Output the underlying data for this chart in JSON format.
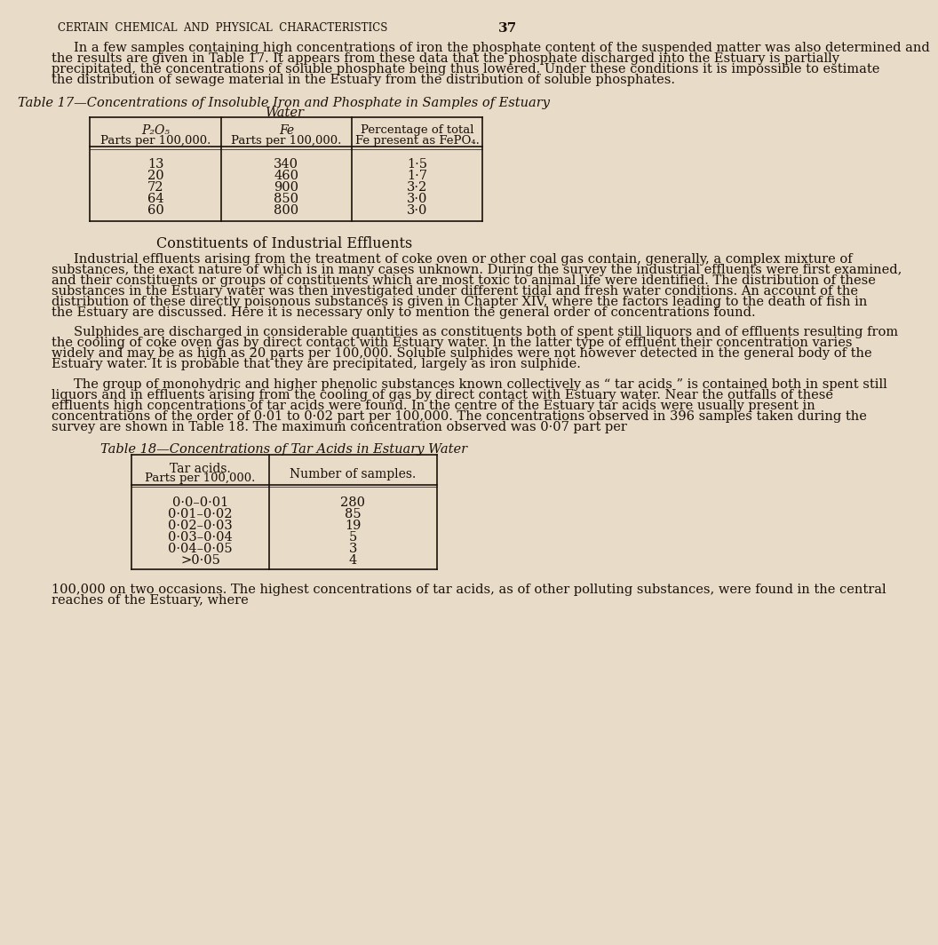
{
  "bg_color": "#e8dcc8",
  "text_color": "#1a1008",
  "page_header": "CERTAIN  CHEMICAL  AND  PHYSICAL  CHARACTERISTICS",
  "page_number": "37",
  "intro_paragraph": "In a few samples containing high concentrations of iron the phosphate content of the suspended matter was also determined and the results are given in Table 17. It appears from these data that the phosphate discharged into the Estuary is partially precipitated, the concentrations of soluble phosphate being thus lowered. Under these conditions it is impossible to estimate the distribution of sewage material in the Estuary from the distribution of soluble phosphates.",
  "table17_title_line1": "Table 17—Concentrations of Insoluble Iron and Phosphate in Samples of Estuary",
  "table17_title_line2": "Water",
  "table17_col1_header_line1": "P₂O₅",
  "table17_col1_header_line2": "Parts per 100,000.",
  "table17_col2_header_line1": "Fe",
  "table17_col2_header_line2": "Parts per 100,000.",
  "table17_col3_header_line1": "Percentage of total",
  "table17_col3_header_line2": "Fe present as FePO₄.",
  "table17_data": [
    [
      "13",
      "340",
      "1·5"
    ],
    [
      "20",
      "460",
      "1·7"
    ],
    [
      "72",
      "900",
      "3·2"
    ],
    [
      "64",
      "850",
      "3·0"
    ],
    [
      "60",
      "800",
      "3·0"
    ]
  ],
  "section_heading": "Constituents of Industrial Effluents",
  "para2": "Industrial effluents arising from the treatment of coke oven or other coal gas contain, generally, a complex mixture of substances, the exact nature of which is in many cases unknown.  During the survey the industrial effluents were first examined, and their constituents or groups of constituents which are most toxic to animal life were identified.  The distribution of these substances in the Estuary water was then investigated under different tidal and fresh water conditions. An account of the distribution of these directly poisonous substances is given in Chapter XIV, where the factors leading to the death of fish in the Estuary are discussed.  Here it is necessary only to mention the general order of concentrations found.",
  "para3": "Sulphides are discharged in considerable quantities as constituents both of spent still liquors and of effluents resulting from the cooling of coke oven gas by direct contact with Estuary water.  In the latter type of effluent their concentration varies widely and may be as high as 20 parts per 100,000.  Soluble sulphides were not however detected in the general body of the Estuary water.  It is probable that they are precipitated, largely as iron sulphide.",
  "para4": "The group of monohydric and higher phenolic substances known collectively as “ tar acids ” is contained both in spent still liquors and in effluents arising from the cooling of gas by direct contact with Estuary water.  Near the outfalls of these effluents high concentrations of tar acids were found.  In the centre of the Estuary tar acids were usually present in concentrations of the order of 0·01 to 0·02 part per 100,000.  The concentrations observed in 396 samples taken during the survey are shown in Table 18.  The maximum concentration observed was 0·07 part per",
  "table18_title": "Table 18—Concentrations of Tar Acids in Estuary Water",
  "table18_col1_header_line1": "Tar acids.",
  "table18_col1_header_line2": "Parts per 100,000.",
  "table18_col2_header": "Number of samples.",
  "table18_data": [
    [
      "0·0–0·01",
      "280"
    ],
    [
      "0·01–0·02",
      "85"
    ],
    [
      "0·02–0·03",
      "19"
    ],
    [
      "0·03–0·04",
      "5"
    ],
    [
      "0·04–0·05",
      "3"
    ],
    [
      ">0·05",
      "4"
    ]
  ],
  "para5": "100,000 on two occasions.  The highest concentrations of tar acids, as of other polluting substances, were found in the central reaches of the Estuary, where"
}
